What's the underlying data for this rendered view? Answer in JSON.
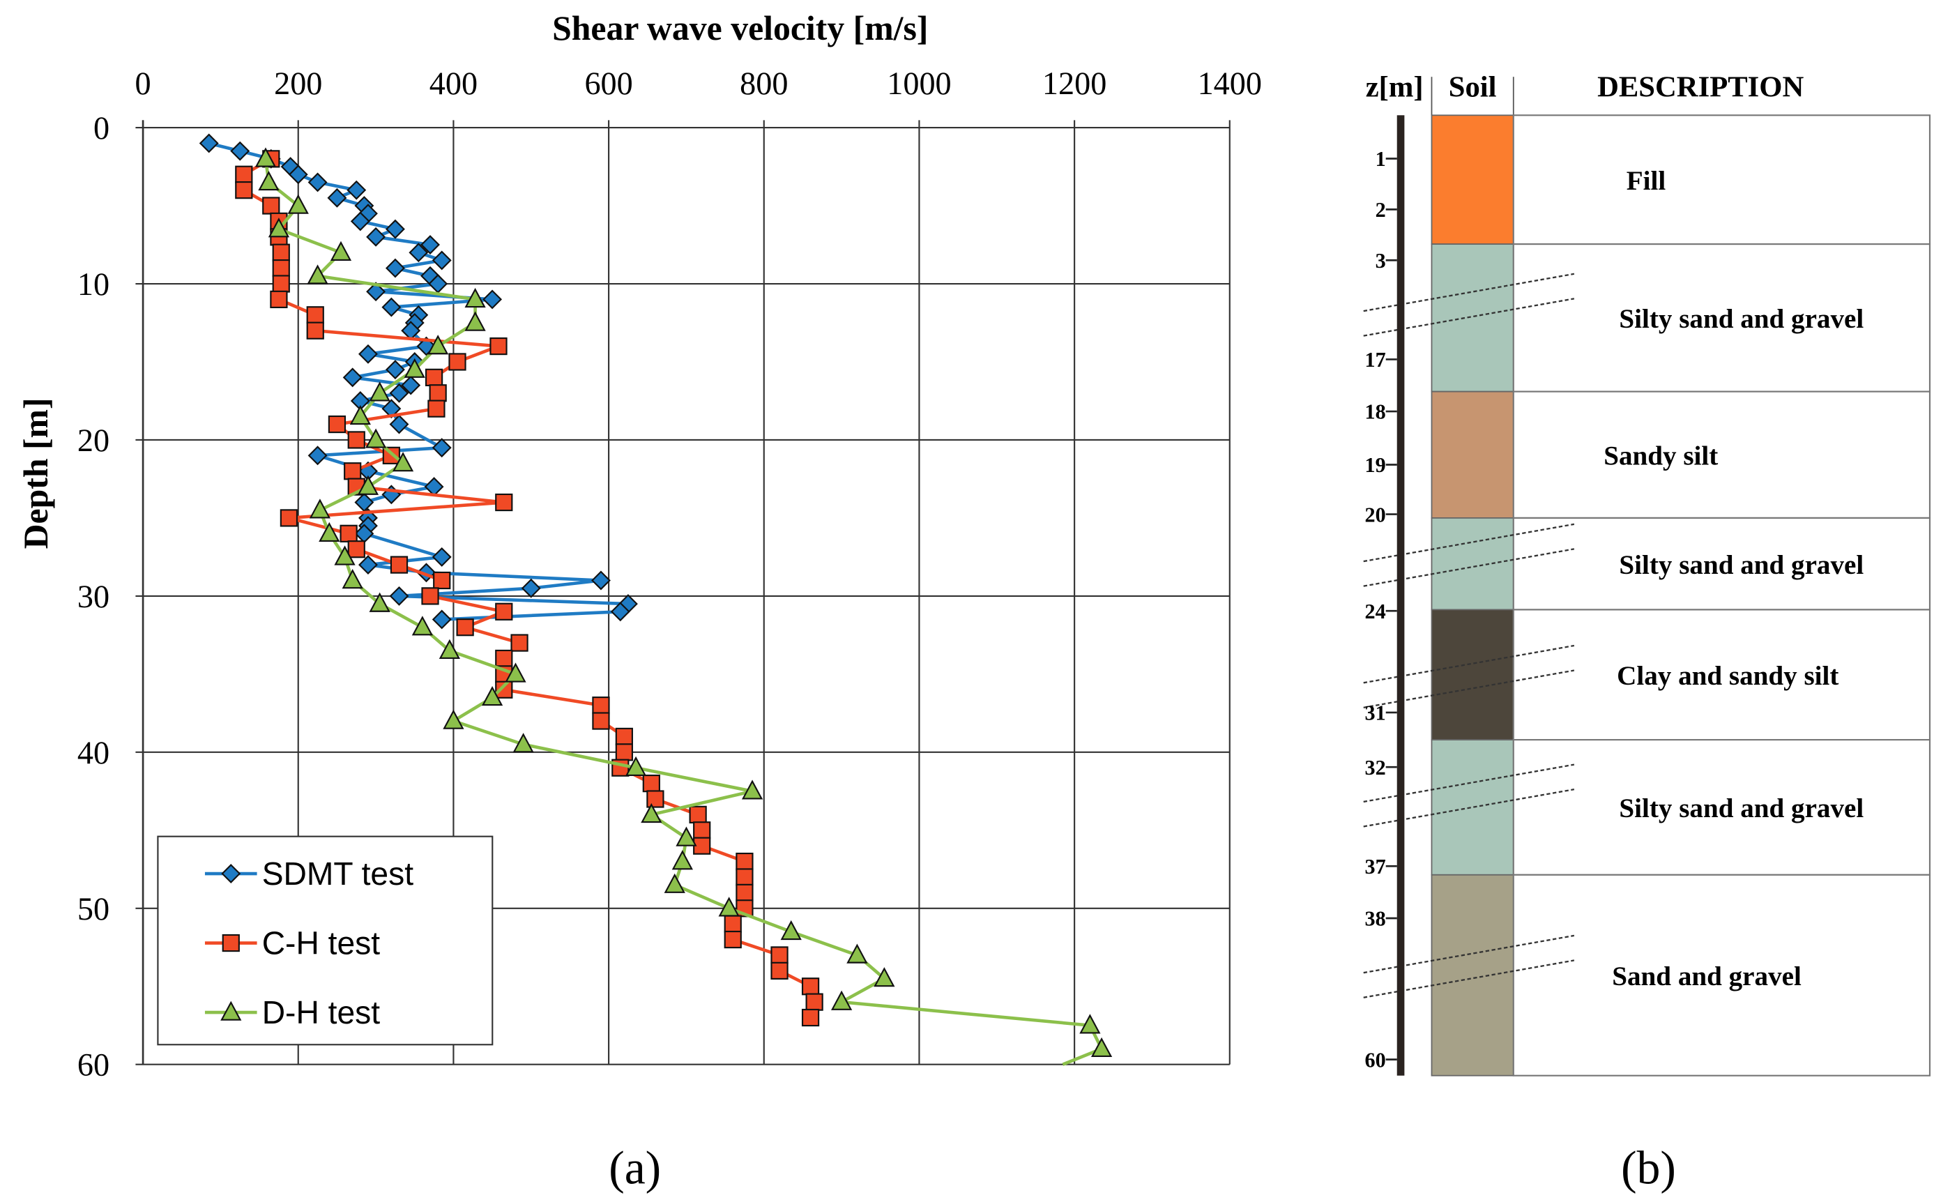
{
  "chart_data": {
    "type": "line",
    "title": "Shear wave velocity [m/s]",
    "xlabel": "Shear wave velocity [m/s]",
    "ylabel": "Depth [m]",
    "xlim": [
      0,
      1400
    ],
    "ylim": [
      0,
      60
    ],
    "y_inverted": true,
    "x_ticks": [
      "0",
      "200",
      "400",
      "600",
      "800",
      "1000",
      "1200",
      "1400"
    ],
    "y_ticks": [
      "0",
      "10",
      "20",
      "30",
      "40",
      "50",
      "60"
    ],
    "grid": true,
    "legend_position": "bottom-left",
    "panel_label": "(a)",
    "series": [
      {
        "name": "SDMT test",
        "color": "#1f7bc4",
        "marker": "diamond",
        "points": [
          [
            85,
            1
          ],
          [
            125,
            1.5
          ],
          [
            165,
            2
          ],
          [
            190,
            2.5
          ],
          [
            200,
            3
          ],
          [
            225,
            3.5
          ],
          [
            275,
            4
          ],
          [
            250,
            4.5
          ],
          [
            285,
            5
          ],
          [
            290,
            5.5
          ],
          [
            280,
            6
          ],
          [
            325,
            6.5
          ],
          [
            300,
            7
          ],
          [
            370,
            7.5
          ],
          [
            355,
            8
          ],
          [
            385,
            8.5
          ],
          [
            325,
            9
          ],
          [
            370,
            9.5
          ],
          [
            380,
            10
          ],
          [
            300,
            10.5
          ],
          [
            450,
            11
          ],
          [
            320,
            11.5
          ],
          [
            355,
            12
          ],
          [
            350,
            12.5
          ],
          [
            345,
            13
          ],
          [
            365,
            14
          ],
          [
            290,
            14.5
          ],
          [
            350,
            15
          ],
          [
            325,
            15.5
          ],
          [
            270,
            16
          ],
          [
            345,
            16.5
          ],
          [
            330,
            17
          ],
          [
            280,
            17.5
          ],
          [
            320,
            18
          ],
          [
            330,
            19
          ],
          [
            385,
            20.5
          ],
          [
            225,
            21
          ],
          [
            290,
            22
          ],
          [
            375,
            23
          ],
          [
            320,
            23.5
          ],
          [
            285,
            24
          ],
          [
            290,
            25
          ],
          [
            290,
            25.5
          ],
          [
            285,
            26
          ],
          [
            385,
            27.5
          ],
          [
            290,
            28
          ],
          [
            365,
            28.5
          ],
          [
            590,
            29
          ],
          [
            500,
            29.5
          ],
          [
            330,
            30
          ],
          [
            625,
            30.5
          ],
          [
            615,
            31
          ],
          [
            385,
            31.5
          ]
        ]
      },
      {
        "name": "C-H test",
        "color": "#f04a25",
        "marker": "square",
        "points": [
          [
            165,
            2
          ],
          [
            130,
            3
          ],
          [
            130,
            4
          ],
          [
            165,
            5
          ],
          [
            175,
            6
          ],
          [
            175,
            7
          ],
          [
            178,
            8
          ],
          [
            178,
            9
          ],
          [
            178,
            10
          ],
          [
            175,
            11
          ],
          [
            222,
            12
          ],
          [
            222,
            13
          ],
          [
            458,
            14
          ],
          [
            405,
            15
          ],
          [
            375,
            16
          ],
          [
            380,
            17
          ],
          [
            378,
            18
          ],
          [
            250,
            19
          ],
          [
            275,
            20
          ],
          [
            320,
            21
          ],
          [
            270,
            22
          ],
          [
            275,
            23
          ],
          [
            465,
            24
          ],
          [
            188,
            25
          ],
          [
            265,
            26
          ],
          [
            275,
            27
          ],
          [
            330,
            28
          ],
          [
            385,
            29
          ],
          [
            370,
            30
          ],
          [
            465,
            31
          ],
          [
            415,
            32
          ],
          [
            485,
            33
          ],
          [
            465,
            34
          ],
          [
            465,
            35
          ],
          [
            465,
            36
          ],
          [
            590,
            37
          ],
          [
            590,
            38
          ],
          [
            620,
            39
          ],
          [
            620,
            40
          ],
          [
            615,
            41
          ],
          [
            655,
            42
          ],
          [
            660,
            43
          ],
          [
            715,
            44
          ],
          [
            720,
            45
          ],
          [
            720,
            46
          ],
          [
            775,
            47
          ],
          [
            775,
            48
          ],
          [
            775,
            49
          ],
          [
            775,
            50
          ],
          [
            760,
            51
          ],
          [
            760,
            52
          ],
          [
            820,
            53
          ],
          [
            820,
            54
          ],
          [
            860,
            55
          ],
          [
            865,
            56
          ],
          [
            860,
            57
          ]
        ]
      },
      {
        "name": "D-H test",
        "color": "#8cc04b",
        "marker": "triangle",
        "points": [
          [
            158,
            2
          ],
          [
            162,
            3.5
          ],
          [
            200,
            5
          ],
          [
            175,
            6.5
          ],
          [
            255,
            8
          ],
          [
            225,
            9.5
          ],
          [
            428,
            11
          ],
          [
            428,
            12.5
          ],
          [
            380,
            14
          ],
          [
            350,
            15.5
          ],
          [
            305,
            17
          ],
          [
            280,
            18.5
          ],
          [
            300,
            20
          ],
          [
            335,
            21.5
          ],
          [
            290,
            23
          ],
          [
            228,
            24.5
          ],
          [
            240,
            26
          ],
          [
            260,
            27.5
          ],
          [
            270,
            29
          ],
          [
            305,
            30.5
          ],
          [
            360,
            32
          ],
          [
            395,
            33.5
          ],
          [
            480,
            35
          ],
          [
            450,
            36.5
          ],
          [
            400,
            38
          ],
          [
            490,
            39.5
          ],
          [
            635,
            41
          ],
          [
            785,
            42.5
          ],
          [
            655,
            44
          ],
          [
            700,
            45.5
          ],
          [
            695,
            47
          ],
          [
            685,
            48.5
          ],
          [
            755,
            50
          ],
          [
            835,
            51.5
          ],
          [
            920,
            53
          ],
          [
            955,
            54.5
          ],
          [
            900,
            56
          ],
          [
            1220,
            57.5
          ],
          [
            1235,
            59
          ],
          [
            1185,
            60
          ]
        ]
      }
    ]
  },
  "soil_profile": {
    "panel_label": "(b)",
    "headers": {
      "depth": "z[m]",
      "soil": "Soil",
      "description": "DESCRIPTION"
    },
    "depth_labels": [
      "1",
      "2",
      "3",
      "17",
      "18",
      "19",
      "20",
      "24",
      "31",
      "32",
      "37",
      "38",
      "60"
    ],
    "layers": [
      {
        "description": "Fill",
        "color": "#fb7d2e"
      },
      {
        "description": "Silty sand and gravel",
        "color": "#a9c6b9"
      },
      {
        "description": "Sandy silt",
        "color": "#c79570"
      },
      {
        "description": "Silty sand and gravel",
        "color": "#a9c6b9"
      },
      {
        "description": "Clay and sandy silt",
        "color": "#4d463b"
      },
      {
        "description": "Silty sand and gravel",
        "color": "#a9c6b9"
      },
      {
        "description": "Sand and gravel",
        "color": "#a6a188"
      }
    ]
  }
}
